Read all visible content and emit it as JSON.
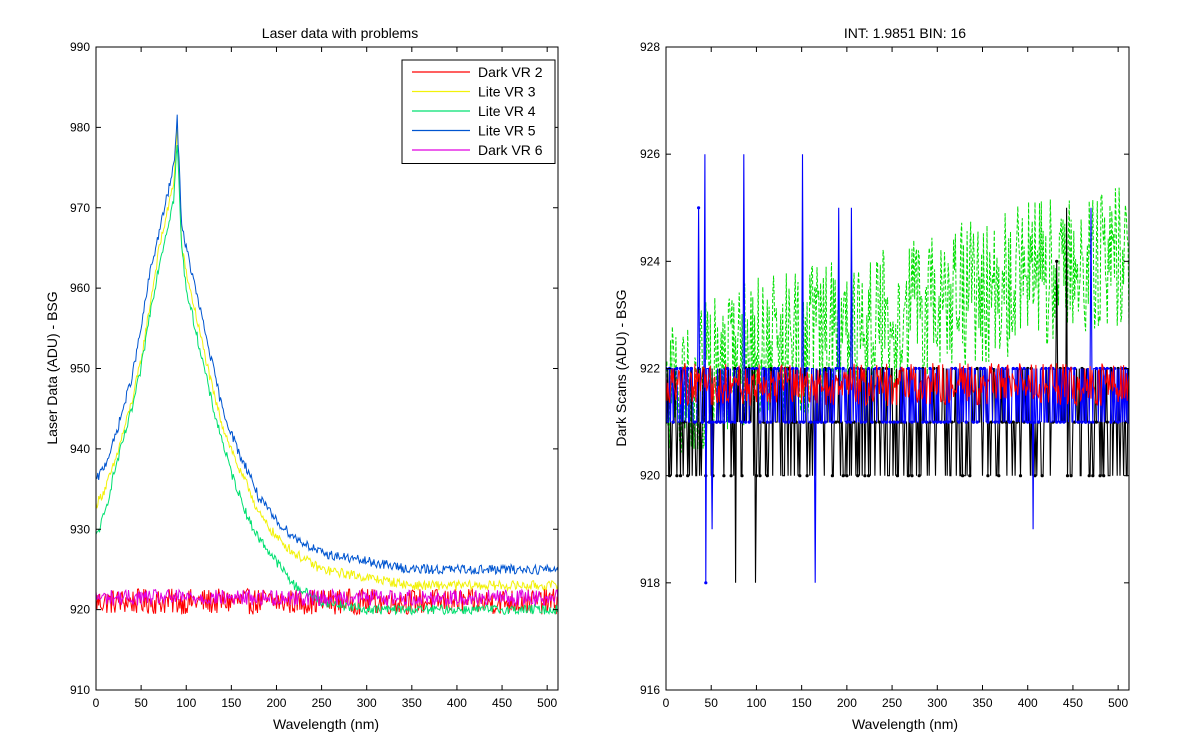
{
  "figure": {
    "background": "#ffffff"
  },
  "chart_data": [
    {
      "type": "line",
      "title": "Laser data with problems",
      "xlabel": "Wavelength (nm)",
      "ylabel": "Laser Data (ADU) - BSG",
      "xlim": [
        0,
        512
      ],
      "ylim": [
        910,
        990
      ],
      "xticks": [
        0,
        50,
        100,
        150,
        200,
        250,
        300,
        350,
        400,
        450,
        500
      ],
      "yticks": [
        910,
        920,
        930,
        940,
        950,
        960,
        970,
        980,
        990
      ],
      "grid": false,
      "legend_position": "top-right",
      "series": [
        {
          "name": "Dark VR 2",
          "color": "#ff0000",
          "kind": "flat",
          "x": [
            0,
            512
          ],
          "y": [
            921,
            921
          ],
          "noise": 1.6
        },
        {
          "name": "Lite VR 3",
          "color": "#f2f20a",
          "kind": "peak",
          "x": [
            0,
            10,
            20,
            30,
            40,
            50,
            60,
            70,
            80,
            86,
            90,
            95,
            100,
            110,
            120,
            130,
            140,
            150,
            160,
            170,
            180,
            200,
            220,
            250,
            300,
            350,
            400,
            450,
            500,
            512
          ],
          "y": [
            933,
            935,
            938,
            942,
            946,
            951,
            958,
            965,
            970,
            973,
            980,
            965,
            962,
            957,
            952,
            947,
            943,
            940,
            937,
            935,
            932,
            929,
            927,
            925,
            924,
            923,
            923,
            923,
            923,
            923
          ],
          "noise": 0.6
        },
        {
          "name": "Lite VR 4",
          "color": "#00e070",
          "kind": "peak",
          "x": [
            0,
            10,
            20,
            30,
            40,
            50,
            60,
            70,
            80,
            86,
            90,
            95,
            100,
            110,
            120,
            130,
            140,
            150,
            160,
            170,
            180,
            200,
            220,
            250,
            300,
            350,
            400,
            450,
            500,
            512
          ],
          "y": [
            929,
            932,
            937,
            941,
            945,
            950,
            957,
            963,
            968,
            971,
            978,
            965,
            960,
            955,
            950,
            945,
            941,
            937,
            934,
            931,
            929,
            926,
            923,
            921,
            920,
            920,
            920,
            920,
            920,
            920
          ],
          "noise": 0.6
        },
        {
          "name": "Lite VR 5",
          "color": "#0055d0",
          "kind": "peak",
          "x": [
            0,
            10,
            20,
            30,
            40,
            50,
            60,
            70,
            80,
            86,
            90,
            95,
            100,
            110,
            120,
            130,
            140,
            150,
            160,
            170,
            180,
            200,
            220,
            250,
            300,
            350,
            400,
            450,
            500,
            512
          ],
          "y": [
            936,
            938,
            941,
            945,
            949,
            955,
            962,
            967,
            972,
            975,
            981,
            968,
            965,
            960,
            955,
            950,
            945,
            942,
            939,
            937,
            934,
            931,
            929,
            927,
            926,
            925,
            925,
            925,
            925,
            925
          ],
          "noise": 0.6
        },
        {
          "name": "Dark VR 6",
          "color": "#e000e0",
          "kind": "flat",
          "x": [
            0,
            512
          ],
          "y": [
            921.5,
            921.5
          ],
          "noise": 1.0
        }
      ]
    },
    {
      "type": "line",
      "title": "INT: 1.9851    BIN: 16",
      "xlabel": "Wavelength (nm)",
      "ylabel": "Dark Scans (ADU) - BSG",
      "xlim": [
        0,
        512
      ],
      "ylim": [
        916,
        928
      ],
      "xticks": [
        0,
        50,
        100,
        150,
        200,
        250,
        300,
        350,
        400,
        450,
        500
      ],
      "yticks": [
        916,
        918,
        920,
        922,
        924,
        926,
        928
      ],
      "grid": false,
      "legend_position": "none",
      "series": [
        {
          "color": "#00e000",
          "style": "dashed",
          "x": [
            0,
            100,
            200,
            300,
            400,
            450,
            500,
            512
          ],
          "y": [
            921.5,
            922.3,
            922.7,
            923.2,
            923.7,
            924.0,
            924.0,
            924.0
          ],
          "noise": 1.4
        },
        {
          "color": "#000000",
          "style": "markers",
          "x": [
            0,
            512
          ],
          "y": [
            921.0,
            921.0
          ],
          "noise": 1.3
        },
        {
          "color": "#0000ff",
          "style": "markers",
          "x": [
            0,
            512
          ],
          "y": [
            921.5,
            921.5
          ],
          "noise": 1.0
        },
        {
          "color": "#ff0000",
          "style": "solid",
          "x": [
            0,
            512
          ],
          "y": [
            921.7,
            921.7
          ],
          "noise": 0.4
        }
      ]
    }
  ]
}
